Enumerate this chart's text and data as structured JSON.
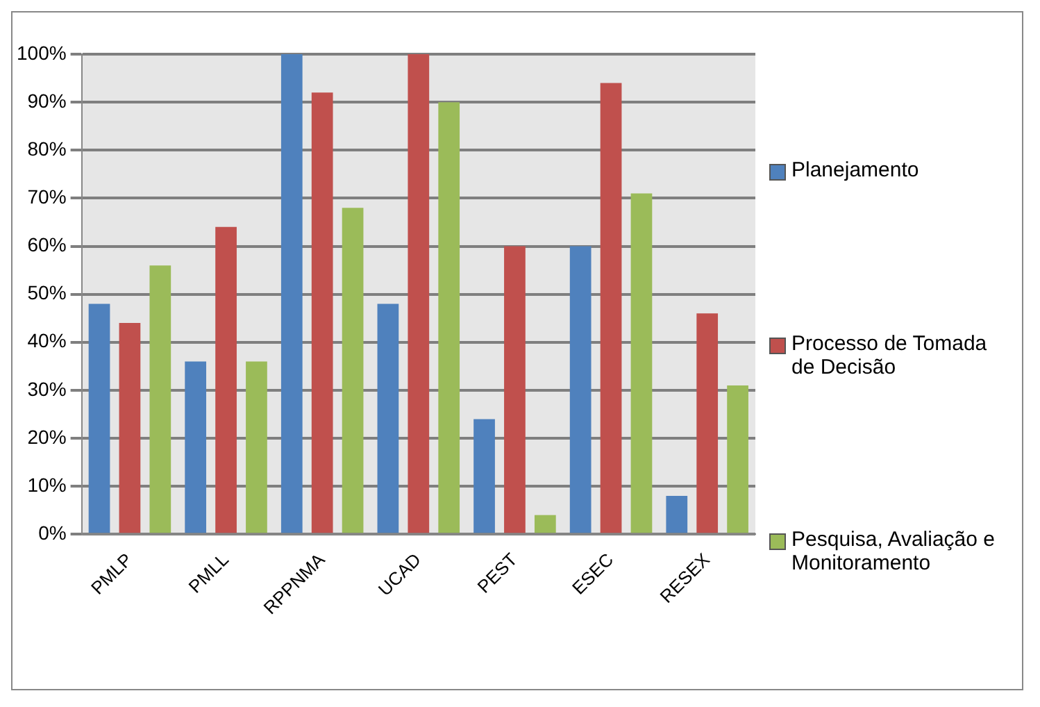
{
  "chart_data": {
    "type": "bar",
    "categories": [
      "PMLP",
      "PMLL",
      "RPPNMA",
      "UCAD",
      "PEST",
      "ESEC",
      "RESEX"
    ],
    "series": [
      {
        "name": "Planejamento",
        "color": "#4f81bd",
        "values": [
          48,
          36,
          100,
          48,
          24,
          60,
          8
        ]
      },
      {
        "name": "Processo de Tomada de Decisão",
        "color": "#c0504d",
        "values": [
          44,
          64,
          92,
          100,
          60,
          94,
          46
        ]
      },
      {
        "name": "Pesquisa, Avaliação e Monitoramento",
        "color": "#9bbb59",
        "values": [
          56,
          36,
          68,
          90,
          4,
          71,
          31
        ]
      }
    ],
    "ylim": [
      0,
      100
    ],
    "yticks": [
      {
        "value": 0,
        "label": "0%"
      },
      {
        "value": 10,
        "label": "10%"
      },
      {
        "value": 20,
        "label": "20%"
      },
      {
        "value": 30,
        "label": "30%"
      },
      {
        "value": 40,
        "label": "40%"
      },
      {
        "value": 50,
        "label": "50%"
      },
      {
        "value": 60,
        "label": "60%"
      },
      {
        "value": 70,
        "label": "70%"
      },
      {
        "value": 80,
        "label": "80%"
      },
      {
        "value": 90,
        "label": "90%"
      },
      {
        "value": 100,
        "label": "100%"
      }
    ],
    "grid": "y",
    "legend": "right"
  }
}
